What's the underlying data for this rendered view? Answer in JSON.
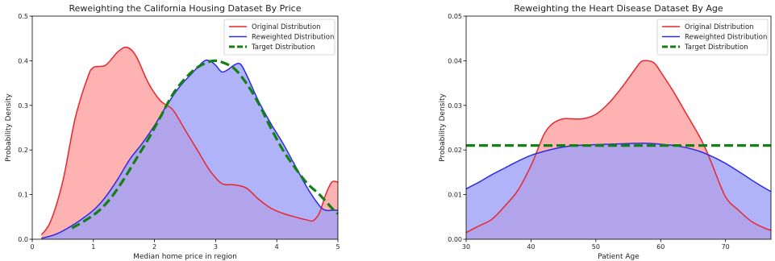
{
  "chart_data": [
    {
      "type": "area",
      "title": "Reweighting the California Housing Dataset By Price",
      "xlabel": "Median home price in region",
      "ylabel": "Probability Density",
      "xlim": [
        0,
        5
      ],
      "ylim": [
        0,
        0.5
      ],
      "xticks": [
        "0",
        "1",
        "2",
        "3",
        "4",
        "5"
      ],
      "yticks": [
        "0.0",
        "0.1",
        "0.2",
        "0.3",
        "0.4",
        "0.5"
      ],
      "legend_position": "top-right",
      "grid": false,
      "series": [
        {
          "name": "Original Distribution",
          "style": "filled",
          "color": "#e8262b",
          "fill": "#ff9f9f",
          "x": [
            0.15,
            0.3,
            0.5,
            0.7,
            0.9,
            1.0,
            1.2,
            1.4,
            1.55,
            1.7,
            1.9,
            2.1,
            2.3,
            2.5,
            2.7,
            2.9,
            3.1,
            3.3,
            3.5,
            3.7,
            3.9,
            4.1,
            4.3,
            4.5,
            4.6,
            4.7,
            4.8,
            4.9,
            5.0
          ],
          "y": [
            0.01,
            0.04,
            0.13,
            0.27,
            0.36,
            0.385,
            0.39,
            0.42,
            0.43,
            0.41,
            0.35,
            0.31,
            0.29,
            0.245,
            0.2,
            0.155,
            0.125,
            0.122,
            0.115,
            0.09,
            0.07,
            0.058,
            0.05,
            0.043,
            0.042,
            0.06,
            0.1,
            0.128,
            0.128
          ]
        },
        {
          "name": "Reweighted Distribution",
          "style": "filled",
          "color": "#2d2de0",
          "fill": "#9ea0f7",
          "x": [
            0.15,
            0.4,
            0.7,
            1.0,
            1.2,
            1.4,
            1.6,
            1.8,
            2.0,
            2.2,
            2.4,
            2.6,
            2.8,
            2.9,
            3.0,
            3.1,
            3.2,
            3.3,
            3.4,
            3.5,
            3.7,
            3.9,
            4.1,
            4.3,
            4.5,
            4.7,
            4.8,
            4.9,
            5.0
          ],
          "y": [
            0.002,
            0.012,
            0.035,
            0.065,
            0.095,
            0.135,
            0.18,
            0.215,
            0.255,
            0.3,
            0.34,
            0.37,
            0.398,
            0.4,
            0.39,
            0.375,
            0.38,
            0.39,
            0.393,
            0.37,
            0.31,
            0.26,
            0.215,
            0.165,
            0.115,
            0.075,
            0.065,
            0.065,
            0.065
          ]
        },
        {
          "name": "Target Distribution",
          "style": "dashed",
          "color": "#138013",
          "x": [
            0.65,
            0.9,
            1.1,
            1.3,
            1.5,
            1.7,
            1.9,
            2.1,
            2.3,
            2.5,
            2.7,
            2.9,
            3.0,
            3.1,
            3.3,
            3.5,
            3.7,
            3.9,
            4.1,
            4.3,
            4.5,
            4.7,
            4.9,
            5.0
          ],
          "y": [
            0.025,
            0.045,
            0.065,
            0.095,
            0.135,
            0.18,
            0.225,
            0.275,
            0.325,
            0.36,
            0.385,
            0.398,
            0.4,
            0.397,
            0.383,
            0.35,
            0.305,
            0.25,
            0.2,
            0.16,
            0.125,
            0.1,
            0.07,
            0.057
          ]
        }
      ]
    },
    {
      "type": "area",
      "title": "Reweighting the Heart Disease Dataset By Age",
      "xlabel": "Patient Age",
      "ylabel": "Probability Density",
      "xlim": [
        30,
        77
      ],
      "ylim": [
        0,
        0.05
      ],
      "xticks": [
        "30",
        "40",
        "50",
        "60",
        "70"
      ],
      "yticks": [
        "0.00",
        "0.01",
        "0.02",
        "0.03",
        "0.04",
        "0.05"
      ],
      "legend_position": "top-right",
      "grid": false,
      "series": [
        {
          "name": "Original Distribution",
          "style": "filled",
          "color": "#e8262b",
          "fill": "#ff9f9f",
          "x": [
            30,
            32,
            34,
            36,
            38,
            40,
            41,
            42,
            43,
            44,
            45,
            46,
            48,
            50,
            52,
            54,
            56,
            57,
            58,
            59,
            60,
            62,
            64,
            66,
            67,
            68,
            70,
            72,
            74,
            76,
            77
          ],
          "y": [
            0.0015,
            0.003,
            0.0045,
            0.0075,
            0.011,
            0.0165,
            0.02,
            0.0235,
            0.0255,
            0.0265,
            0.027,
            0.027,
            0.027,
            0.028,
            0.0305,
            0.034,
            0.038,
            0.0398,
            0.04,
            0.0395,
            0.0375,
            0.033,
            0.028,
            0.023,
            0.02,
            0.0165,
            0.0095,
            0.0065,
            0.004,
            0.0025,
            0.002
          ]
        },
        {
          "name": "Reweighted Distribution",
          "style": "filled",
          "color": "#2d2de0",
          "fill": "#9ea0f7",
          "x": [
            30,
            32,
            34,
            36,
            38,
            40,
            42,
            44,
            46,
            48,
            50,
            52,
            54,
            56,
            58,
            60,
            62,
            64,
            66,
            68,
            70,
            72,
            74,
            76,
            77
          ],
          "y": [
            0.0113,
            0.0128,
            0.0145,
            0.016,
            0.0175,
            0.0188,
            0.0197,
            0.0204,
            0.0209,
            0.0211,
            0.0212,
            0.0213,
            0.0214,
            0.0215,
            0.0215,
            0.0213,
            0.021,
            0.0205,
            0.0197,
            0.0185,
            0.017,
            0.0152,
            0.0133,
            0.0115,
            0.0107
          ]
        },
        {
          "name": "Target Distribution",
          "style": "dashed",
          "color": "#138013",
          "x": [
            30,
            77
          ],
          "y": [
            0.021,
            0.021
          ]
        }
      ]
    }
  ]
}
